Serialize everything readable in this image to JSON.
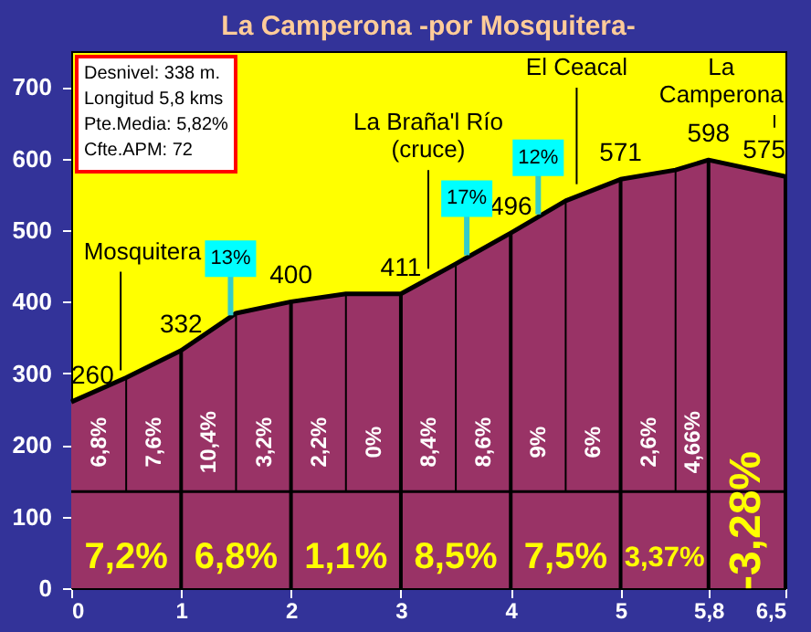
{
  "chart_data": {
    "type": "area",
    "title": "La Camperona -por Mosquitera-",
    "x": [
      0,
      0.5,
      1,
      1.5,
      2,
      2.5,
      3,
      3.5,
      4,
      4.5,
      5,
      5.5,
      5.8,
      6.5
    ],
    "series": [
      {
        "color": "#993366",
        "values": [
          260,
          294,
          332,
          384,
          400,
          411,
          411,
          453,
          496,
          541,
          571,
          584,
          598,
          575
        ],
        "value_labels": [
          "260",
          null,
          "332",
          null,
          "400",
          null,
          "411",
          null,
          "496",
          null,
          "571",
          null,
          "598",
          "575"
        ]
      }
    ],
    "xlim": [
      0,
      6.5
    ],
    "xticks": [
      0,
      1,
      2,
      3,
      4,
      5,
      {
        "value": 5.8,
        "label": "5,8"
      },
      {
        "value": 6.5,
        "label": "6,5"
      }
    ],
    "ref_lines": [
      {
        "axis": "y",
        "value": 135,
        "color": "#000000"
      },
      {
        "axis": "x",
        "value": 0.5,
        "color": "#000000"
      },
      {
        "axis": "x",
        "value": 1.5,
        "color": "#000000"
      },
      {
        "axis": "x",
        "value": 2.5,
        "color": "#000000"
      },
      {
        "axis": "x",
        "value": 3.5,
        "color": "#000000"
      },
      {
        "axis": "x",
        "value": 4.5,
        "color": "#000000"
      },
      {
        "axis": "x",
        "value": 5.5,
        "color": "#000000"
      }
    ],
    "ylim": [
      0,
      750
    ],
    "yticks": [
      0,
      100,
      200,
      300,
      400,
      500,
      600,
      700
    ],
    "annotations": [
      "Desnivel: 338 m.",
      "Longitud 5,8 kms",
      "Pte.Media: 5,82%",
      "Cfte.APM: 72",
      "6,8%",
      "7,6%",
      "10,4%",
      "3,2%",
      "2,2%",
      "0%",
      "8,4%",
      "8,6%",
      "9%",
      "6%",
      "2,6%",
      "4,66%",
      {
        "text": "7,2%",
        "x": 0.5,
        "y": 135
      },
      {
        "text": "6,8%",
        "x": 1.5,
        "y": 135
      },
      {
        "text": "1,1%",
        "x": 2.5,
        "y": 135
      },
      {
        "text": "8,5%",
        "x": 3.5,
        "y": 135
      },
      {
        "text": "7,5%",
        "x": 4.5,
        "y": 135
      },
      {
        "text": "3,37%",
        "x": 5.4,
        "y": 135
      },
      {
        "text": "-3,28%",
        "x": 6.15,
        "y": 135
      },
      {
        "text": "Mosquitera",
        "x": 0.45,
        "y": 294
      },
      {
        "text": "13%",
        "x": 1.45,
        "y": 381
      },
      {
        "text": "La Braña'l Río\n(cruce)",
        "x": 3.25,
        "y": 436
      },
      {
        "text": "17%",
        "x": 3.6,
        "y": 465
      },
      {
        "text": "12%",
        "x": 4.25,
        "y": 522
      },
      {
        "text": "El Ceacal",
        "x": 4.6,
        "y": 554
      },
      {
        "text": "La\nCamperona",
        "x": 6.4,
        "y": 582
      }
    ]
  }
}
